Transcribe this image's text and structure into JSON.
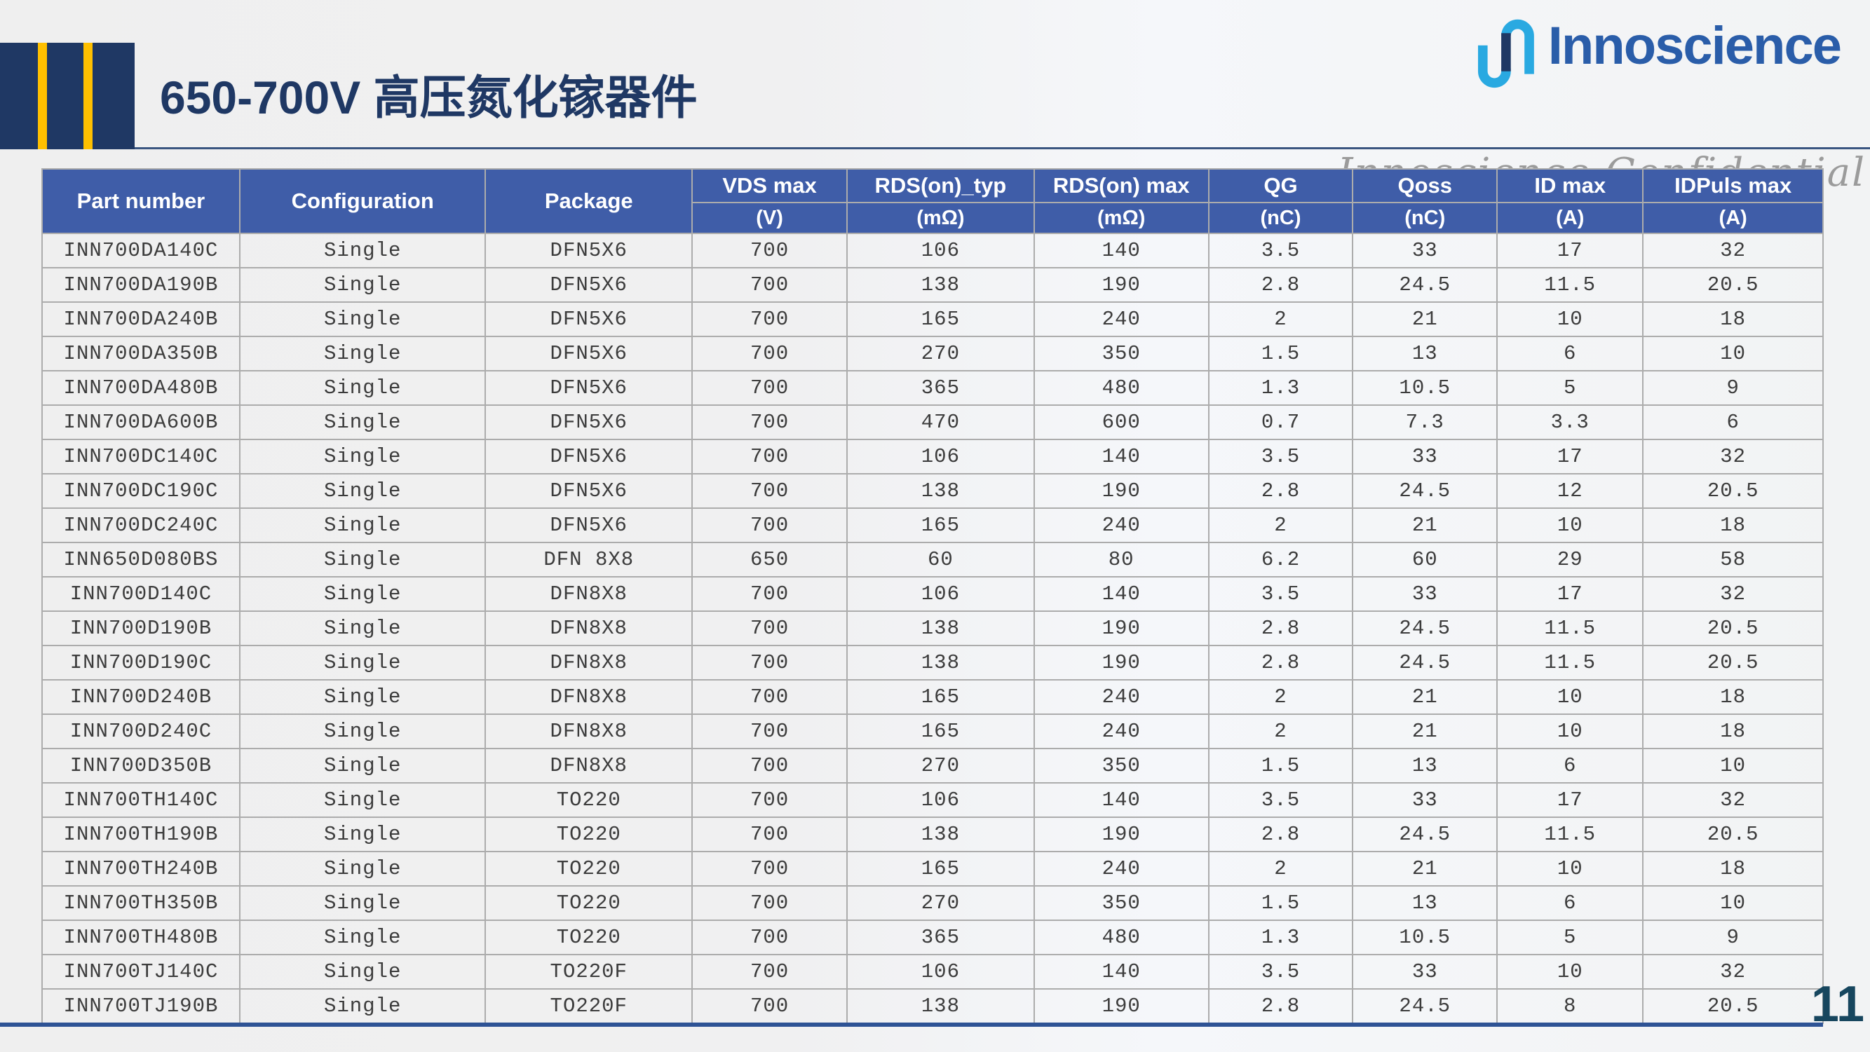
{
  "slide": {
    "title": "650-700V 高压氮化镓器件",
    "logo_text": "Innoscience",
    "watermark": "Innoscience Confidential",
    "page_number": "11"
  },
  "colors": {
    "navy": "#1F3864",
    "gold": "#FFC000",
    "header_blue": "#3F5DA8",
    "border_gray": "#ACACAC",
    "cell_text": "#3C3C3C",
    "logo_blue": "#2A5DA9",
    "logo_cyan": "#29A9E1",
    "watermark_gray": "#9B9B9B",
    "line_blue": "#2E5395",
    "page_number": "#17465E"
  },
  "table": {
    "headers": [
      {
        "label": "Part number",
        "unit": ""
      },
      {
        "label": "Configuration",
        "unit": ""
      },
      {
        "label": "Package",
        "unit": ""
      },
      {
        "label": "VDS max",
        "unit": "(V)"
      },
      {
        "label": "RDS(on)_typ",
        "unit": "(mΩ)"
      },
      {
        "label": "RDS(on) max",
        "unit": "(mΩ)"
      },
      {
        "label": "QG",
        "unit": "(nC)"
      },
      {
        "label": "Qoss",
        "unit": "(nC)"
      },
      {
        "label": "ID max",
        "unit": "(A)"
      },
      {
        "label": "IDPuls max",
        "unit": "(A)"
      }
    ],
    "col_widths_pct": [
      11.1,
      13.8,
      11.6,
      8.7,
      10.5,
      9.8,
      8.1,
      8.1,
      8.2,
      10.1
    ],
    "rows": [
      [
        "INN700DA140C",
        "Single",
        "DFN5X6",
        "700",
        "106",
        "140",
        "3.5",
        "33",
        "17",
        "32"
      ],
      [
        "INN700DA190B",
        "Single",
        "DFN5X6",
        "700",
        "138",
        "190",
        "2.8",
        "24.5",
        "11.5",
        "20.5"
      ],
      [
        "INN700DA240B",
        "Single",
        "DFN5X6",
        "700",
        "165",
        "240",
        "2",
        "21",
        "10",
        "18"
      ],
      [
        "INN700DA350B",
        "Single",
        "DFN5X6",
        "700",
        "270",
        "350",
        "1.5",
        "13",
        "6",
        "10"
      ],
      [
        "INN700DA480B",
        "Single",
        "DFN5X6",
        "700",
        "365",
        "480",
        "1.3",
        "10.5",
        "5",
        "9"
      ],
      [
        "INN700DA600B",
        "Single",
        "DFN5X6",
        "700",
        "470",
        "600",
        "0.7",
        "7.3",
        "3.3",
        "6"
      ],
      [
        "INN700DC140C",
        "Single",
        "DFN5X6",
        "700",
        "106",
        "140",
        "3.5",
        "33",
        "17",
        "32"
      ],
      [
        "INN700DC190C",
        "Single",
        "DFN5X6",
        "700",
        "138",
        "190",
        "2.8",
        "24.5",
        "12",
        "20.5"
      ],
      [
        "INN700DC240C",
        "Single",
        "DFN5X6",
        "700",
        "165",
        "240",
        "2",
        "21",
        "10",
        "18"
      ],
      [
        "INN650D080BS",
        "Single",
        "DFN 8X8",
        "650",
        "60",
        "80",
        "6.2",
        "60",
        "29",
        "58"
      ],
      [
        "INN700D140C",
        "Single",
        "DFN8X8",
        "700",
        "106",
        "140",
        "3.5",
        "33",
        "17",
        "32"
      ],
      [
        "INN700D190B",
        "Single",
        "DFN8X8",
        "700",
        "138",
        "190",
        "2.8",
        "24.5",
        "11.5",
        "20.5"
      ],
      [
        "INN700D190C",
        "Single",
        "DFN8X8",
        "700",
        "138",
        "190",
        "2.8",
        "24.5",
        "11.5",
        "20.5"
      ],
      [
        "INN700D240B",
        "Single",
        "DFN8X8",
        "700",
        "165",
        "240",
        "2",
        "21",
        "10",
        "18"
      ],
      [
        "INN700D240C",
        "Single",
        "DFN8X8",
        "700",
        "165",
        "240",
        "2",
        "21",
        "10",
        "18"
      ],
      [
        "INN700D350B",
        "Single",
        "DFN8X8",
        "700",
        "270",
        "350",
        "1.5",
        "13",
        "6",
        "10"
      ],
      [
        "INN700TH140C",
        "Single",
        "TO220",
        "700",
        "106",
        "140",
        "3.5",
        "33",
        "17",
        "32"
      ],
      [
        "INN700TH190B",
        "Single",
        "TO220",
        "700",
        "138",
        "190",
        "2.8",
        "24.5",
        "11.5",
        "20.5"
      ],
      [
        "INN700TH240B",
        "Single",
        "TO220",
        "700",
        "165",
        "240",
        "2",
        "21",
        "10",
        "18"
      ],
      [
        "INN700TH350B",
        "Single",
        "TO220",
        "700",
        "270",
        "350",
        "1.5",
        "13",
        "6",
        "10"
      ],
      [
        "INN700TH480B",
        "Single",
        "TO220",
        "700",
        "365",
        "480",
        "1.3",
        "10.5",
        "5",
        "9"
      ],
      [
        "INN700TJ140C",
        "Single",
        "TO220F",
        "700",
        "106",
        "140",
        "3.5",
        "33",
        "10",
        "32"
      ],
      [
        "INN700TJ190B",
        "Single",
        "TO220F",
        "700",
        "138",
        "190",
        "2.8",
        "24.5",
        "8",
        "20.5"
      ]
    ]
  }
}
